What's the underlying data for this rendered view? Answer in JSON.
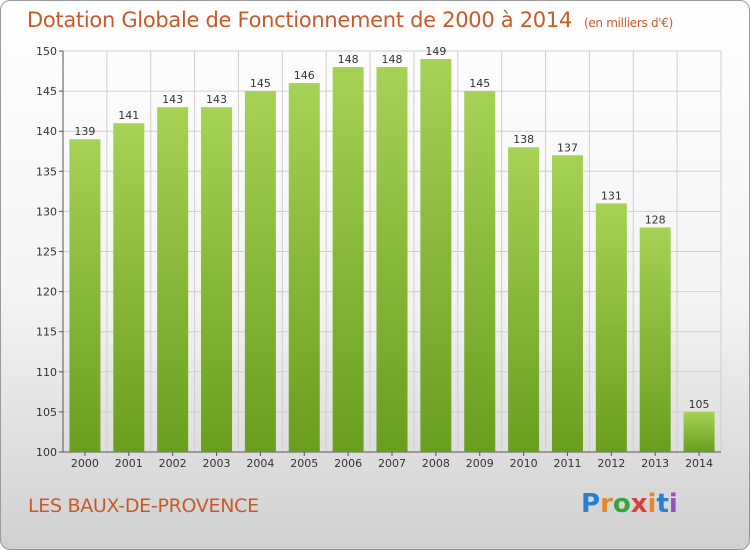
{
  "header": {
    "title": "Dotation Globale de Fonctionnement de 2000 à 2014",
    "unit": "(en milliers d'€)"
  },
  "footer": {
    "city": "LES BAUX-DE-PROVENCE",
    "logo_text": "Proxiti"
  },
  "colors": {
    "bar_top": "#a6d255",
    "bar_bottom": "#6a9e1e",
    "title": "#c85a2a",
    "grid": "#cfcfcf"
  },
  "chart_data": {
    "type": "bar",
    "title": "Dotation Globale de Fonctionnement de 2000 à 2014",
    "xlabel": "",
    "ylabel": "(en milliers d'€)",
    "categories": [
      "2000",
      "2001",
      "2002",
      "2003",
      "2004",
      "2005",
      "2006",
      "2007",
      "2008",
      "2009",
      "2010",
      "2011",
      "2012",
      "2013",
      "2014"
    ],
    "values": [
      139,
      141,
      143,
      143,
      145,
      146,
      148,
      148,
      149,
      145,
      138,
      137,
      131,
      128,
      105
    ],
    "ylim": [
      100,
      150
    ],
    "yticks": [
      100,
      105,
      110,
      115,
      120,
      125,
      130,
      135,
      140,
      145,
      150
    ],
    "grid": true
  }
}
